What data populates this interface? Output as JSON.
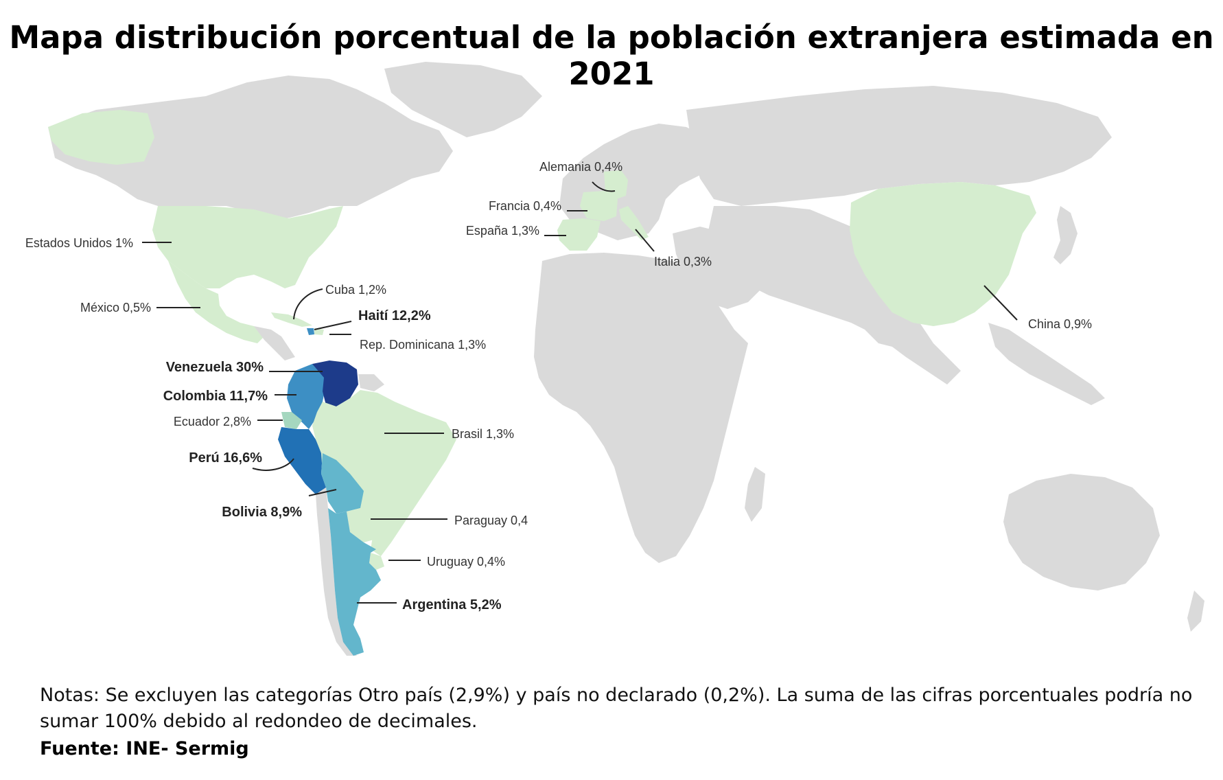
{
  "title": "Mapa distribución porcentual de la población extranjera estimada en 2021",
  "notes": "Notas: Se excluyen las categorías Otro país (2,9%) y país no declarado (0,2%). La suma de las cifras porcentuales podría no sumar 100% debido al redondeo de decimales.",
  "source": "Fuente: INE- Sermig",
  "colors": {
    "ocean": "#ffffff",
    "land": "#dadada",
    "low": "#d5edcf",
    "mid_light": "#a5d7bf",
    "mid": "#63b6cc",
    "high": "#3d8fc4",
    "higher": "#2171b5",
    "max": "#1d3b8a"
  },
  "labels": {
    "estados_unidos": "Estados Unidos 1%",
    "mexico": "México 0,5%",
    "cuba": "Cuba 1,2%",
    "haiti": "Haití 12,2%",
    "rep_dominicana": "Rep. Dominicana 1,3%",
    "venezuela": "Venezuela 30%",
    "colombia": "Colombia 11,7%",
    "ecuador": "Ecuador 2,8%",
    "peru": "Perú 16,6%",
    "bolivia": "Bolivia 8,9%",
    "brasil": "Brasil 1,3%",
    "paraguay": "Paraguay 0,4",
    "uruguay": "Uruguay 0,4%",
    "argentina": "Argentina 5,2%",
    "alemania": "Alemania 0,4%",
    "francia": "Francia 0,4%",
    "espana": "España 1,3%",
    "italia": "Italia 0,3%",
    "china": "China 0,9%"
  },
  "map_data": [
    {
      "country": "Venezuela",
      "value": 30,
      "class": "max"
    },
    {
      "country": "Perú",
      "value": 16.6,
      "class": "higher"
    },
    {
      "country": "Haití",
      "value": 12.2,
      "class": "high"
    },
    {
      "country": "Colombia",
      "value": 11.7,
      "class": "high"
    },
    {
      "country": "Bolivia",
      "value": 8.9,
      "class": "mid"
    },
    {
      "country": "Argentina",
      "value": 5.2,
      "class": "mid"
    },
    {
      "country": "Ecuador",
      "value": 2.8,
      "class": "mid_light"
    },
    {
      "country": "España",
      "value": 1.3,
      "class": "low"
    },
    {
      "country": "Brasil",
      "value": 1.3,
      "class": "low"
    },
    {
      "country": "Rep. Dominicana",
      "value": 1.3,
      "class": "low"
    },
    {
      "country": "Cuba",
      "value": 1.2,
      "class": "low"
    },
    {
      "country": "Estados Unidos",
      "value": 1,
      "class": "low"
    },
    {
      "country": "China",
      "value": 0.9,
      "class": "low"
    },
    {
      "country": "México",
      "value": 0.5,
      "class": "low"
    },
    {
      "country": "Alemania",
      "value": 0.4,
      "class": "low"
    },
    {
      "country": "Francia",
      "value": 0.4,
      "class": "low"
    },
    {
      "country": "Paraguay",
      "value": 0.4,
      "class": "low"
    },
    {
      "country": "Uruguay",
      "value": 0.4,
      "class": "low"
    },
    {
      "country": "Italia",
      "value": 0.3,
      "class": "low"
    }
  ]
}
